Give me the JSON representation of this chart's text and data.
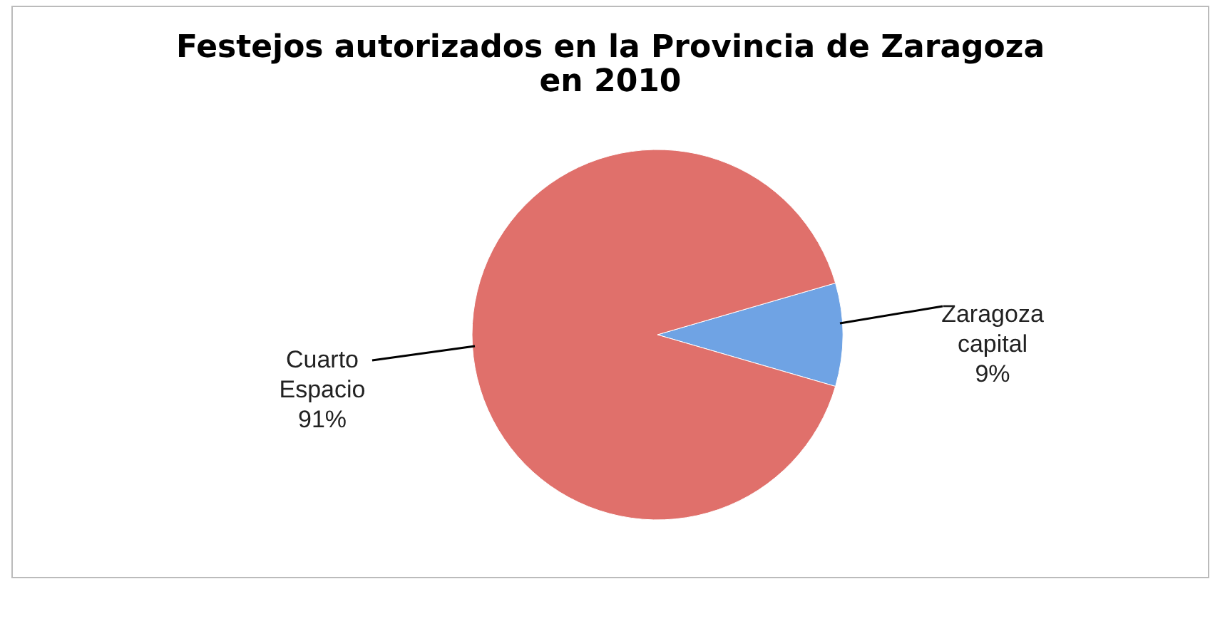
{
  "chart_data": {
    "type": "pie",
    "title": [
      "Festejos autorizados en la Provincia de Zaragoza",
      "en 2010"
    ],
    "categories": [
      "Zaragoza capital",
      "Cuarto Espacio"
    ],
    "values": [
      9,
      91
    ],
    "colors": [
      "#6fa3e4",
      "#e0706b"
    ],
    "value_labels": [
      "9%",
      "91%"
    ]
  }
}
